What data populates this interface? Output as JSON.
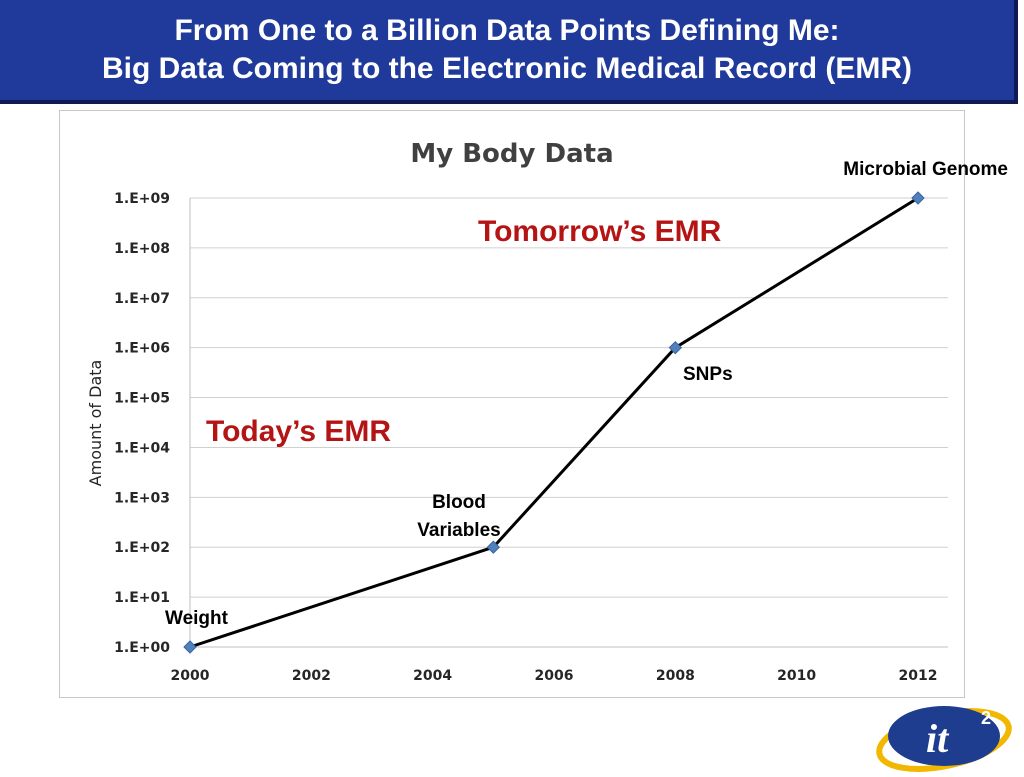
{
  "header": {
    "line1": "From One to a Billion Data Points Defining Me:",
    "line2": "Big Data Coming to the Electronic Medical Record (EMR)",
    "background": "#1f3a9a"
  },
  "chart_data": {
    "type": "line",
    "title": "My Body Data",
    "xlabel": "",
    "ylabel": "Amount of Data",
    "y_scale": "log",
    "xlim": [
      2000,
      2012
    ],
    "ylim": [
      1,
      1000000000
    ],
    "x_ticks": [
      "2000",
      "2002",
      "2004",
      "2006",
      "2008",
      "2010",
      "2012"
    ],
    "y_ticks": [
      "1.E+00",
      "1.E+01",
      "1.E+02",
      "1.E+03",
      "1.E+04",
      "1.E+05",
      "1.E+06",
      "1.E+07",
      "1.E+08",
      "1.E+09"
    ],
    "grid": true,
    "series": [
      {
        "x": [
          2000,
          2005,
          2008,
          2012
        ],
        "y": [
          1,
          100,
          1000000,
          1000000000
        ]
      }
    ],
    "point_labels": [
      "Weight",
      "Blood Variables",
      "SNPs",
      "Microbial Genome"
    ],
    "annotations": [
      "Today’s EMR",
      "Tomorrow’s EMR"
    ],
    "colors": {
      "line": "#000000",
      "marker": "#4f81bd",
      "annotation": "#b41414"
    }
  },
  "logo": {
    "text": "it",
    "superscript": "2"
  }
}
